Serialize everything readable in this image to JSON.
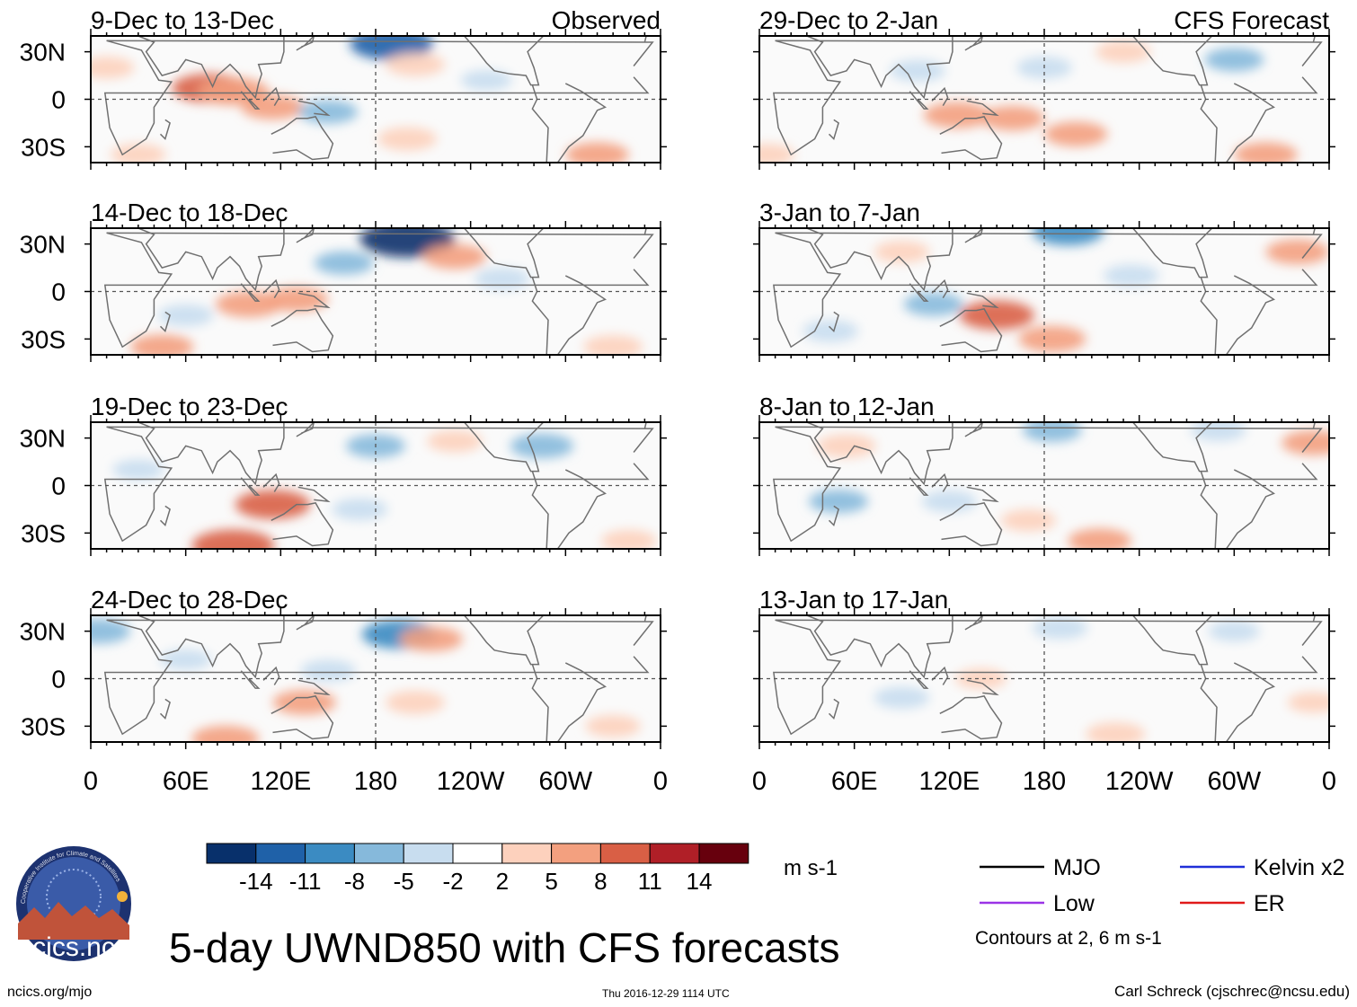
{
  "title": "5-day UWND850 with CFS forecasts",
  "footer": {
    "left": "ncics.org/mjo",
    "center": "Thu 2016-12-29 1114 UTC",
    "right": "Carl Schreck (cjschrec@ncsu.edu)"
  },
  "logo": {
    "text": "cics.nc",
    "ring_text": "Cooperative Institute for Climate and Satellites",
    "colors": {
      "bg": "#2f4a8e",
      "ring": "#1d3270",
      "mountain": "#c0533a",
      "sun": "#f3b23a"
    }
  },
  "columns": {
    "left_label": "Observed",
    "right_label": "CFS Forecast"
  },
  "legend": {
    "units": "m s-1",
    "contour_note": "Contours at 2, 6 m s-1",
    "items": [
      {
        "label": "MJO",
        "color": "#000000"
      },
      {
        "label": "Kelvin x2",
        "color": "#1f2fd8"
      },
      {
        "label": "Low",
        "color": "#9a33e6"
      },
      {
        "label": "ER",
        "color": "#e01a1a"
      }
    ]
  },
  "colorbar": {
    "ticks": [
      "-14",
      "-11",
      "-8",
      "-5",
      "-2",
      "2",
      "5",
      "8",
      "11",
      "14"
    ],
    "colors": [
      "#08306b",
      "#1f61a8",
      "#3b8bc2",
      "#86b9db",
      "#c8ddef",
      "#ffffff",
      "#fdd1bd",
      "#f3a07f",
      "#d95f45",
      "#b01f27",
      "#67000d"
    ]
  },
  "chart_data": {
    "type": "heatmap",
    "variable": "UWND850",
    "x_axis": {
      "ticks": [
        "0",
        "60E",
        "120E",
        "180",
        "120W",
        "60W",
        "0"
      ],
      "range_deg_east": [
        0,
        360
      ]
    },
    "y_axis": {
      "ticks": [
        "30N",
        "0",
        "30S"
      ],
      "range_deg": [
        -40,
        40
      ]
    },
    "panels": [
      {
        "title": "9-Dec to 13-Dec",
        "label": "Observed",
        "source": "observed",
        "anomalies": [
          {
            "lon": 75,
            "lat": 7,
            "value": 9
          },
          {
            "lon": 90,
            "lat": 5,
            "value": 8
          },
          {
            "lon": 115,
            "lat": -5,
            "value": 6
          },
          {
            "lon": 190,
            "lat": 35,
            "value": -11
          },
          {
            "lon": 205,
            "lat": 22,
            "value": 5
          },
          {
            "lon": 150,
            "lat": -8,
            "value": -5
          },
          {
            "lon": 200,
            "lat": -25,
            "value": 5
          },
          {
            "lon": 320,
            "lat": -35,
            "value": 6
          },
          {
            "lon": 10,
            "lat": 20,
            "value": 4
          },
          {
            "lon": 250,
            "lat": 12,
            "value": -3
          },
          {
            "lon": 30,
            "lat": -35,
            "value": 4
          }
        ]
      },
      {
        "title": "14-Dec to 18-Dec",
        "label": "",
        "source": "observed",
        "anomalies": [
          {
            "lon": 200,
            "lat": 33,
            "value": -14
          },
          {
            "lon": 230,
            "lat": 22,
            "value": 6
          },
          {
            "lon": 100,
            "lat": -8,
            "value": 7
          },
          {
            "lon": 130,
            "lat": -5,
            "value": 6
          },
          {
            "lon": 45,
            "lat": -35,
            "value": 6
          },
          {
            "lon": 330,
            "lat": -35,
            "value": 5
          },
          {
            "lon": 60,
            "lat": -15,
            "value": -4
          },
          {
            "lon": 160,
            "lat": 18,
            "value": -5
          },
          {
            "lon": 260,
            "lat": 8,
            "value": -4
          }
        ]
      },
      {
        "title": "19-Dec to 23-Dec",
        "label": "",
        "source": "observed",
        "anomalies": [
          {
            "lon": 90,
            "lat": -38,
            "value": 11
          },
          {
            "lon": 115,
            "lat": -12,
            "value": 9
          },
          {
            "lon": 180,
            "lat": 25,
            "value": -5
          },
          {
            "lon": 285,
            "lat": 25,
            "value": -6
          },
          {
            "lon": 30,
            "lat": 10,
            "value": -3
          },
          {
            "lon": 230,
            "lat": 28,
            "value": 4
          },
          {
            "lon": 340,
            "lat": -35,
            "value": 4
          },
          {
            "lon": 170,
            "lat": -15,
            "value": -4
          }
        ]
      },
      {
        "title": "24-Dec to 28-Dec",
        "label": "",
        "source": "observed",
        "anomalies": [
          {
            "lon": 195,
            "lat": 28,
            "value": -9
          },
          {
            "lon": 85,
            "lat": -38,
            "value": 7
          },
          {
            "lon": 135,
            "lat": -15,
            "value": 6
          },
          {
            "lon": 215,
            "lat": 25,
            "value": 6
          },
          {
            "lon": 5,
            "lat": 30,
            "value": -6
          },
          {
            "lon": 205,
            "lat": -15,
            "value": 5
          },
          {
            "lon": 60,
            "lat": 12,
            "value": -3
          },
          {
            "lon": 150,
            "lat": 5,
            "value": -4
          },
          {
            "lon": 330,
            "lat": -30,
            "value": 4
          }
        ]
      },
      {
        "title": "29-Dec to 2-Jan",
        "label": "CFS Forecast",
        "source": "CFS forecast",
        "anomalies": [
          {
            "lon": 125,
            "lat": -10,
            "value": 7
          },
          {
            "lon": 160,
            "lat": -12,
            "value": 6
          },
          {
            "lon": 200,
            "lat": -22,
            "value": 6
          },
          {
            "lon": 230,
            "lat": 30,
            "value": 4
          },
          {
            "lon": 320,
            "lat": -35,
            "value": 6
          },
          {
            "lon": 5,
            "lat": -35,
            "value": 4
          },
          {
            "lon": 100,
            "lat": 18,
            "value": -4
          },
          {
            "lon": 180,
            "lat": 20,
            "value": -4
          },
          {
            "lon": 300,
            "lat": 25,
            "value": -5
          }
        ]
      },
      {
        "title": "3-Jan to 7-Jan",
        "label": "",
        "source": "CFS forecast",
        "anomalies": [
          {
            "lon": 150,
            "lat": -15,
            "value": 9
          },
          {
            "lon": 185,
            "lat": -30,
            "value": 7
          },
          {
            "lon": 340,
            "lat": 25,
            "value": 6
          },
          {
            "lon": 195,
            "lat": 38,
            "value": -8
          },
          {
            "lon": 110,
            "lat": -8,
            "value": -5
          },
          {
            "lon": 235,
            "lat": 10,
            "value": -4
          },
          {
            "lon": 45,
            "lat": -25,
            "value": -4
          },
          {
            "lon": 90,
            "lat": 25,
            "value": 4
          }
        ]
      },
      {
        "title": "8-Jan to 12-Jan",
        "label": "",
        "source": "CFS forecast",
        "anomalies": [
          {
            "lon": 215,
            "lat": -35,
            "value": 6
          },
          {
            "lon": 350,
            "lat": 27,
            "value": 6
          },
          {
            "lon": 55,
            "lat": 25,
            "value": 5
          },
          {
            "lon": 185,
            "lat": 35,
            "value": -5
          },
          {
            "lon": 50,
            "lat": -10,
            "value": -5
          },
          {
            "lon": 120,
            "lat": -10,
            "value": -4
          },
          {
            "lon": 290,
            "lat": 35,
            "value": -4
          },
          {
            "lon": 170,
            "lat": -22,
            "value": 4
          }
        ]
      },
      {
        "title": "13-Jan to 17-Jan",
        "label": "",
        "source": "CFS forecast",
        "anomalies": [
          {
            "lon": 225,
            "lat": -35,
            "value": 5
          },
          {
            "lon": 90,
            "lat": -12,
            "value": -4
          },
          {
            "lon": 190,
            "lat": 32,
            "value": -4
          },
          {
            "lon": 140,
            "lat": 0,
            "value": 3
          },
          {
            "lon": 300,
            "lat": 30,
            "value": -3
          },
          {
            "lon": 350,
            "lat": -15,
            "value": 3
          }
        ]
      }
    ]
  }
}
